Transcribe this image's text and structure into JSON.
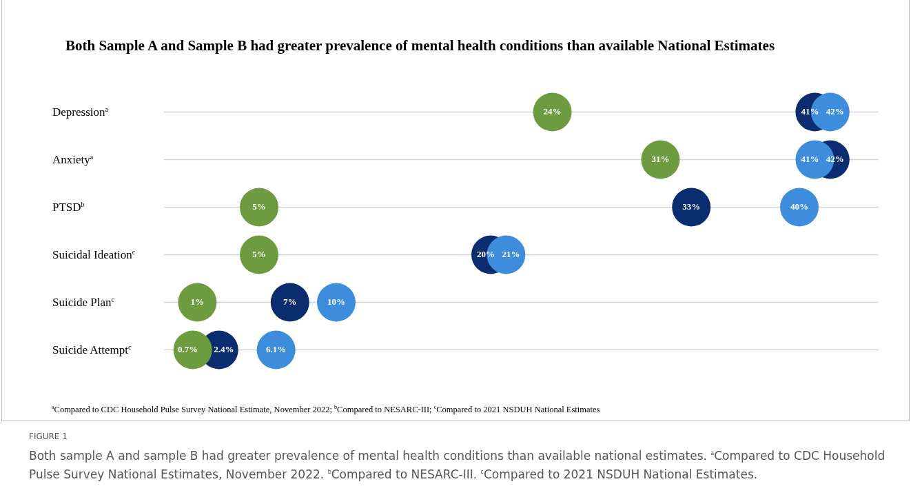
{
  "chart_data": {
    "type": "scatter",
    "orientation": "horizontal",
    "title": "Both Sample A and Sample B had greater prevalence of mental health conditions than available National Estimates",
    "categories": [
      "Depression$^{a}$",
      "Anxiety$^{a}$",
      "PTSD$^{b}$",
      "Suicidal Ideation$^{c}$",
      "Suicide Plan$^{c}$",
      "Suicide Attempt$^{c}$"
    ],
    "series": [
      {
        "color": "#0b2c6e",
        "values": [
          41,
          42,
          33,
          20,
          7,
          2.4
        ],
        "value_labels": [
          "41%",
          "42%",
          "33%",
          "20%",
          "7%",
          "2.4%"
        ]
      },
      {
        "color": "#3d8ddc",
        "values": [
          42,
          41,
          40,
          21,
          10,
          6.1
        ],
        "value_labels": [
          "42%",
          "41%",
          "40%",
          "21%",
          "10%",
          "6.1%"
        ]
      },
      {
        "color": "#6e9a40",
        "values": [
          24,
          31,
          5,
          5,
          1,
          0.7
        ],
        "value_labels": [
          "24%",
          "31%",
          "5%",
          "5%",
          "1%",
          "0.7%"
        ]
      }
    ],
    "grid": "y",
    "marker": "circle",
    "legend": false,
    "annotations": [
      "$^{a}$Compared to CDC Household Pulse Survey National Estimate, November 2022; $^{b}$Compared to NESARC-III; $^{c}$Compared to 2021 NSDUH National Estimates",
      "FIGURE 1",
      "Both sample A and sample B had greater prevalence of mental health conditions than available national estimates. $^{a}$Compared to CDC Household Pulse Survey National Estimates, November 2022. $^{b}$Compared to NESARC-III. $^{c}$Compared to 2021 NSDUH National Estimates."
    ]
  }
}
